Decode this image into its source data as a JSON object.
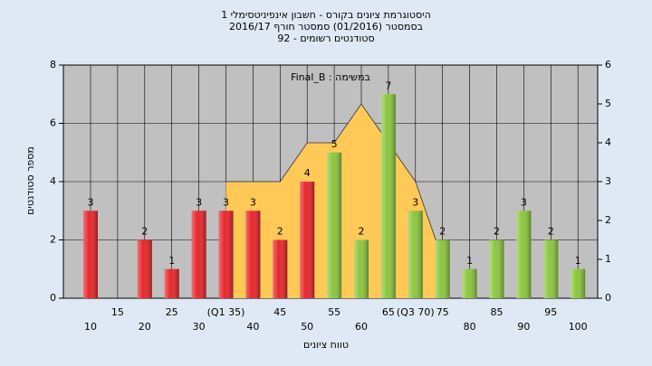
{
  "chart_data": {
    "type": "bar",
    "title": [
      "היסטוגרמת ציונים בקורס - חשבון אינפיניטסימלי 1",
      "בסמסטר  (01/2016)  סמסטר חורף 2016/17",
      "סטודנטים רשומים - 92"
    ],
    "annotation": "במשימה : Final_B",
    "xlabel": "טווח ציונים",
    "ylabel": "מספר סטודנטים",
    "categories": [
      "10",
      "15",
      "20",
      "25",
      "30",
      "(Q1 35)",
      "40",
      "45",
      "50",
      "55",
      "60",
      "65",
      "(Q3 70)",
      "75",
      "80",
      "85",
      "90",
      "95",
      "100"
    ],
    "values": [
      3,
      0,
      2,
      1,
      3,
      3,
      3,
      2,
      4,
      5,
      2,
      7,
      3,
      2,
      1,
      2,
      3,
      2,
      1
    ],
    "colors": [
      "#e8262b",
      "#e8262b",
      "#e8262b",
      "#e8262b",
      "#e8262b",
      "#e8262b",
      "#e8262b",
      "#e8262b",
      "#e8262b",
      "#8cc63f",
      "#8cc63f",
      "#8cc63f",
      "#8cc63f",
      "#8cc63f",
      "#8cc63f",
      "#8cc63f",
      "#8cc63f",
      "#8cc63f",
      "#8cc63f"
    ],
    "density": {
      "values": [
        null,
        null,
        null,
        null,
        null,
        3,
        3,
        3,
        4,
        4,
        5,
        4,
        3,
        1,
        null,
        null,
        null,
        null,
        null
      ],
      "axis": "y2",
      "color": "#ffc957"
    },
    "ylim": [
      0,
      8
    ],
    "yticks": [
      0,
      2,
      4,
      6,
      8
    ],
    "y2lim": [
      0,
      6
    ],
    "y2ticks": [
      0,
      1,
      2,
      3,
      4,
      5,
      6
    ],
    "grid": true
  }
}
